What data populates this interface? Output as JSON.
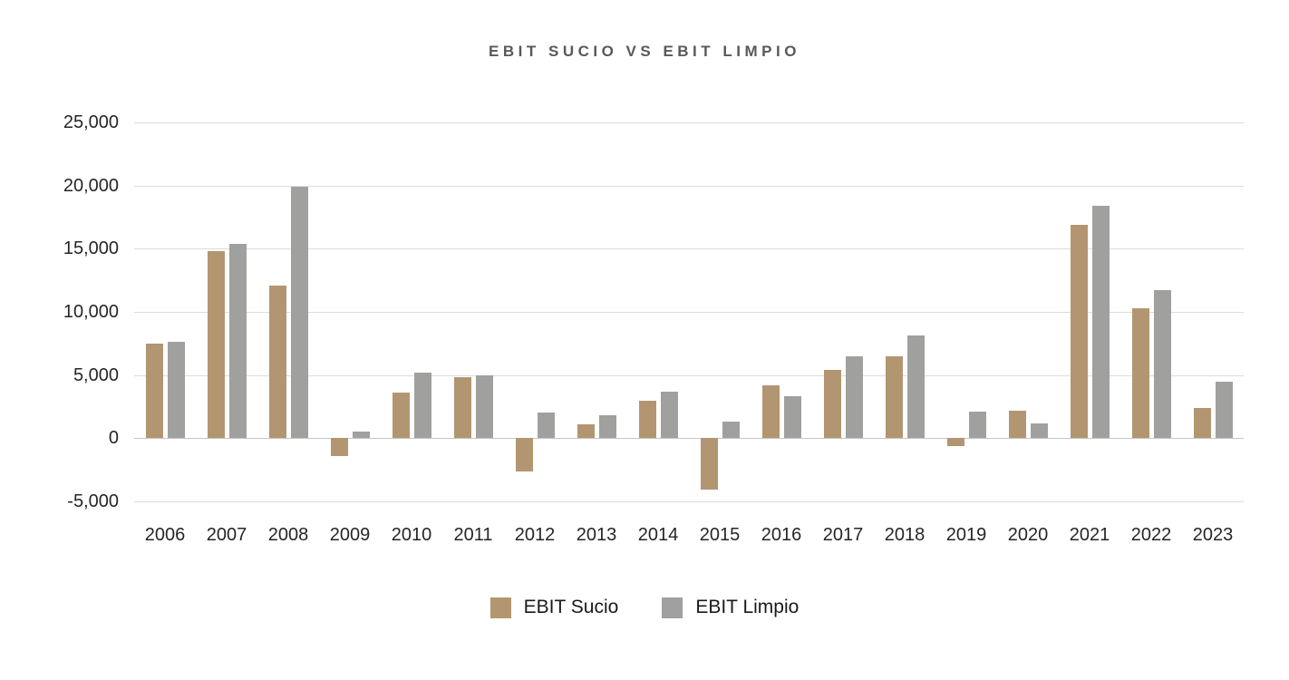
{
  "page": {
    "background_color": "#ffffff"
  },
  "chart_data": {
    "type": "bar",
    "title": "EBIT SUCIO VS EBIT LIMPIO",
    "categories": [
      "2006",
      "2007",
      "2008",
      "2009",
      "2010",
      "2011",
      "2012",
      "2013",
      "2014",
      "2015",
      "2016",
      "2017",
      "2018",
      "2019",
      "2020",
      "2021",
      "2022",
      "2023"
    ],
    "series": [
      {
        "name": "EBIT Sucio",
        "color": "#B29671",
        "values": [
          7500,
          14800,
          12100,
          -1400,
          3600,
          4800,
          -2600,
          1100,
          3000,
          -4100,
          4200,
          5400,
          6500,
          -600,
          2200,
          16900,
          10300,
          2400
        ]
      },
      {
        "name": "EBIT Limpio",
        "color": "#A0A09E",
        "values": [
          7600,
          15400,
          19900,
          500,
          5200,
          5000,
          2000,
          1800,
          3700,
          1300,
          3300,
          6500,
          8100,
          2100,
          1200,
          18400,
          11700,
          4500
        ]
      }
    ],
    "ylim": [
      -5000,
      25000
    ],
    "ytick_step": 5000,
    "yticks": [
      {
        "value": 25000,
        "label": "25,000"
      },
      {
        "value": 20000,
        "label": "20,000"
      },
      {
        "value": 15000,
        "label": "15,000"
      },
      {
        "value": 10000,
        "label": "10,000"
      },
      {
        "value": 5000,
        "label": "5,000"
      },
      {
        "value": 0,
        "label": "0"
      },
      {
        "value": -5000,
        "label": "-5,000"
      }
    ],
    "grid": "horizontal",
    "legend_position": "bottom",
    "style": {
      "gridline_color": "#dcdcdc",
      "zero_line_color": "#c6c6c6",
      "title_color": "#595959",
      "axis_text_color": "#262626"
    }
  }
}
